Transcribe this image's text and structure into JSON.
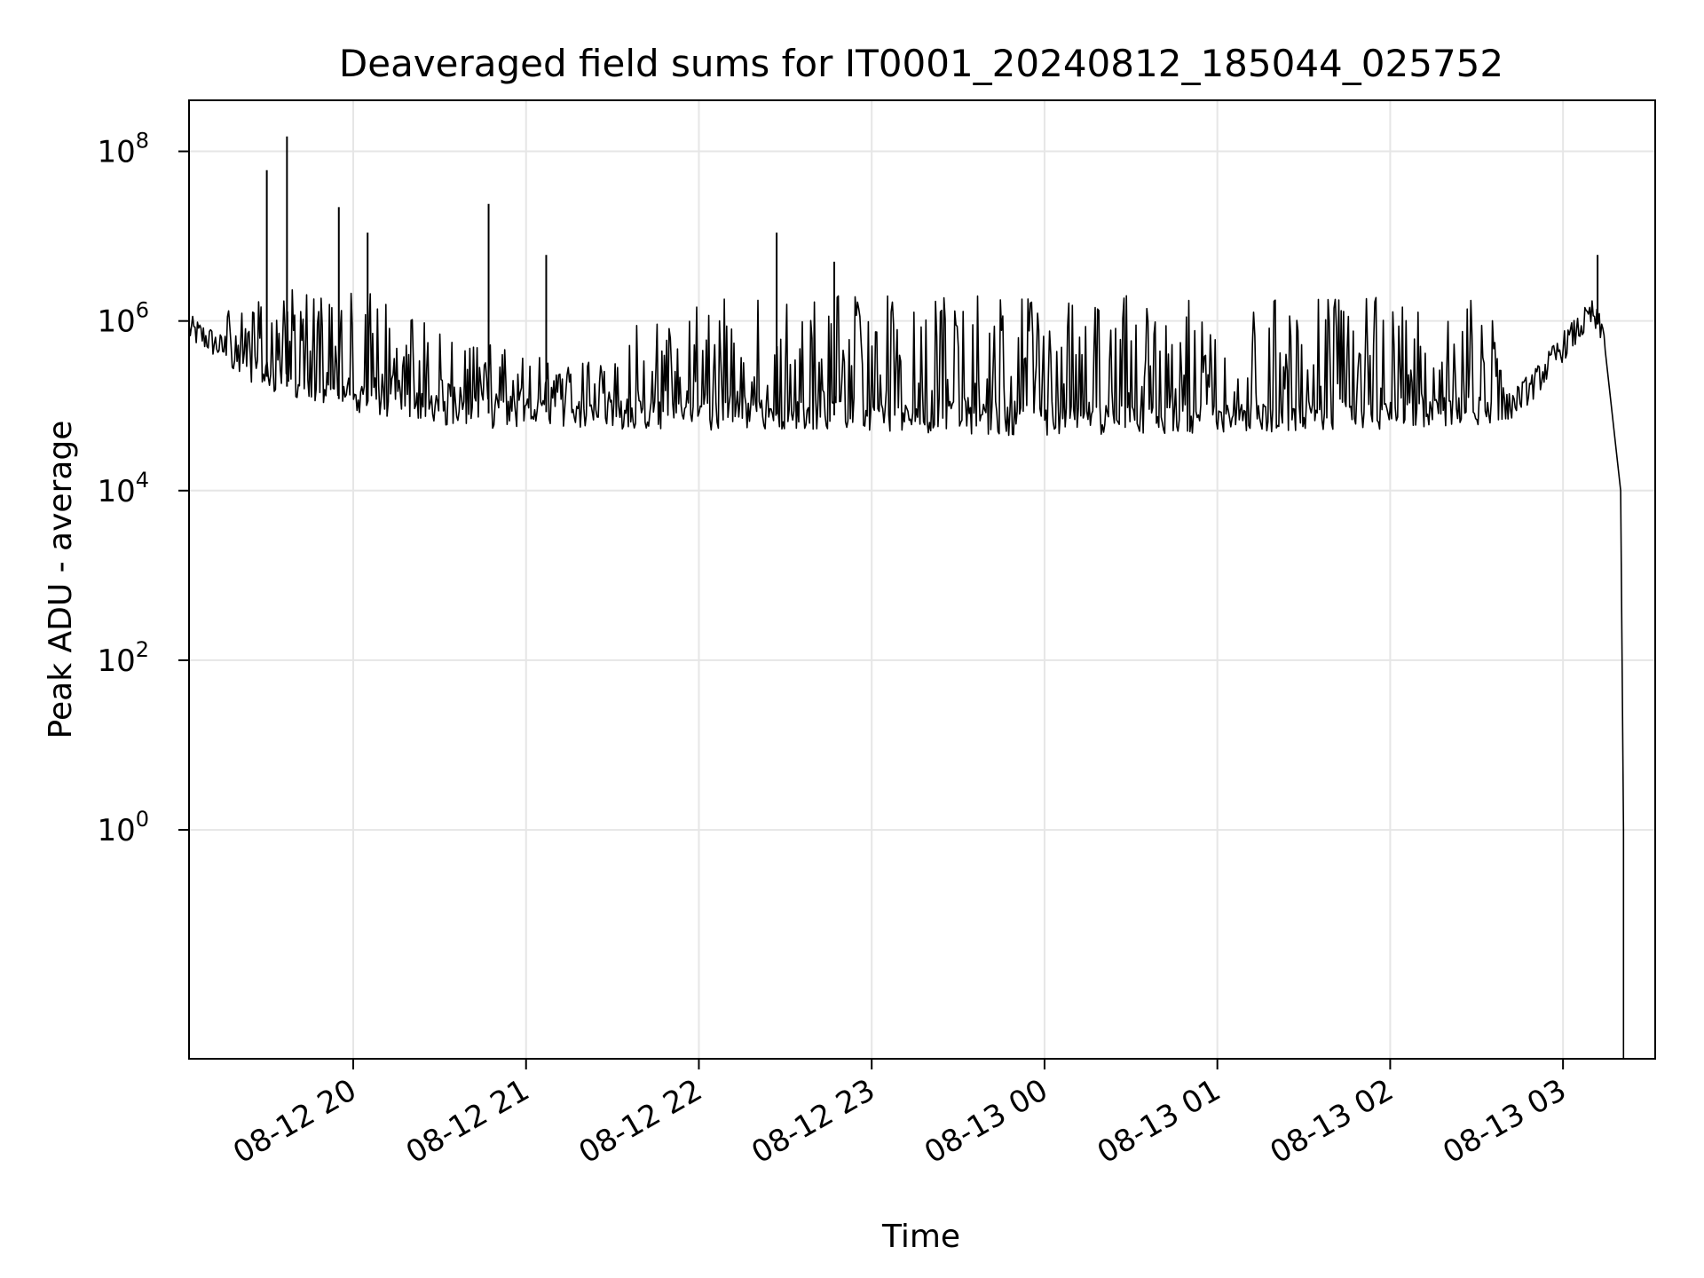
{
  "chart_data": {
    "type": "line",
    "title": "Deaveraged field sums for IT0001_20240812_185044_025752",
    "xlabel": "Time",
    "ylabel": "Peak ADU - average",
    "x_scale": "time",
    "y_scale": "log",
    "x_range": [
      "2024-08-12 19:03",
      "2024-08-13 03:32"
    ],
    "ylim": [
      0.002,
      400000000
    ],
    "grid": true,
    "line_color": "#000000",
    "x_ticks": [
      {
        "time": "2024-08-12 20:00",
        "label": "08-12 20"
      },
      {
        "time": "2024-08-12 21:00",
        "label": "08-12 21"
      },
      {
        "time": "2024-08-12 22:00",
        "label": "08-12 22"
      },
      {
        "time": "2024-08-12 23:00",
        "label": "08-12 23"
      },
      {
        "time": "2024-08-13 00:00",
        "label": "08-13 00"
      },
      {
        "time": "2024-08-13 01:00",
        "label": "08-13 01"
      },
      {
        "time": "2024-08-13 02:00",
        "label": "08-13 02"
      },
      {
        "time": "2024-08-13 03:00",
        "label": "08-13 03"
      }
    ],
    "y_ticks": [
      {
        "value": 1,
        "base": "10",
        "exp": "0"
      },
      {
        "value": 100,
        "base": "10",
        "exp": "2"
      },
      {
        "value": 10000,
        "base": "10",
        "exp": "4"
      },
      {
        "value": 1000000,
        "base": "10",
        "exp": "6"
      },
      {
        "value": 100000000,
        "base": "10",
        "exp": "8"
      }
    ],
    "series": [
      {
        "points": [
          [
            "2024-08-12 19:03",
            800000
          ],
          [
            "2024-08-12 19:10",
            600000
          ],
          [
            "2024-08-12 19:20",
            350000
          ],
          [
            "2024-08-12 19:30",
            220000
          ],
          [
            "2024-08-12 19:40",
            150000
          ],
          [
            "2024-08-12 19:55",
            120000
          ],
          [
            "2024-08-12 20:10",
            110000
          ],
          [
            "2024-08-12 20:30",
            90000
          ],
          [
            "2024-08-12 20:50",
            80000
          ],
          [
            "2024-08-12 21:10",
            85000
          ],
          [
            "2024-08-12 21:30",
            78000
          ],
          [
            "2024-08-12 22:00",
            75000
          ],
          [
            "2024-08-12 22:30",
            80000
          ],
          [
            "2024-08-12 23:00",
            75000
          ],
          [
            "2024-08-12 23:30",
            70000
          ],
          [
            "2024-08-13 00:00",
            65000
          ],
          [
            "2024-08-13 00:30",
            70000
          ],
          [
            "2024-08-13 01:00",
            70000
          ],
          [
            "2024-08-13 01:30",
            75000
          ],
          [
            "2024-08-13 02:00",
            80000
          ],
          [
            "2024-08-13 02:40",
            90000
          ],
          [
            "2024-08-13 02:50",
            180000
          ],
          [
            "2024-08-13 03:00",
            500000
          ],
          [
            "2024-08-13 03:10",
            1200000
          ],
          [
            "2024-08-13 03:15",
            600000
          ],
          [
            "2024-08-13 03:20",
            10000
          ],
          [
            "2024-08-13 03:21",
            1
          ],
          [
            "2024-08-13 03:21",
            0.002
          ]
        ],
        "upper_envelope": [
          [
            "2024-08-12 19:15",
            1500000
          ],
          [
            "2024-08-12 19:40",
            2500000
          ],
          [
            "2024-08-12 20:00",
            2300000
          ],
          [
            "2024-08-12 20:20",
            1800000
          ],
          [
            "2024-08-12 20:30",
            800000
          ],
          [
            "2024-08-12 21:00",
            400000
          ],
          [
            "2024-08-12 21:30",
            600000
          ],
          [
            "2024-08-12 21:45",
            2000000
          ],
          [
            "2024-08-13 02:30",
            2000000
          ],
          [
            "2024-08-13 02:40",
            700000
          ]
        ],
        "spikes": [
          [
            "2024-08-12 19:30",
            60000000
          ],
          [
            "2024-08-12 19:37",
            150000000
          ],
          [
            "2024-08-12 19:55",
            22000000
          ],
          [
            "2024-08-12 20:05",
            11000000
          ],
          [
            "2024-08-12 20:47",
            24000000
          ],
          [
            "2024-08-12 21:07",
            6000000
          ],
          [
            "2024-08-12 22:27",
            11000000
          ],
          [
            "2024-08-12 22:47",
            5000000
          ],
          [
            "2024-08-13 03:12",
            6000000
          ]
        ]
      }
    ]
  }
}
